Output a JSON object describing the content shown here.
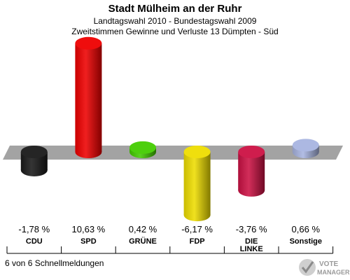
{
  "header": {
    "title": "Stadt Mülheim an der Ruhr",
    "subtitle1": "Landtagswahl 2010 - Bundestagswahl 2009",
    "subtitle2": "Zweitstimmen Gewinne und Verluste 13 Dümpten - Süd"
  },
  "footer": {
    "note": "6 von 6 Schnellmeldungen"
  },
  "logo": {
    "line1": "VOTE",
    "line2": "MANAGER",
    "icon": "checkmark-x-icon"
  },
  "chart_data": {
    "type": "bar",
    "categories": [
      "CDU",
      "SPD",
      "GRÜNE",
      "FDP",
      "DIE LINKE",
      "Sonstige"
    ],
    "values": [
      -1.78,
      10.63,
      0.42,
      -6.17,
      -3.76,
      0.66
    ],
    "value_labels": [
      "-1,78 %",
      "10,63 %",
      "0,42 %",
      "-6,17 %",
      "-3,76 %",
      "0,66 %"
    ],
    "colors": [
      "#1a1a1a",
      "#ee0000",
      "#44cc00",
      "#eedd00",
      "#cc1144",
      "#a8b4e0"
    ],
    "grid": false
  }
}
